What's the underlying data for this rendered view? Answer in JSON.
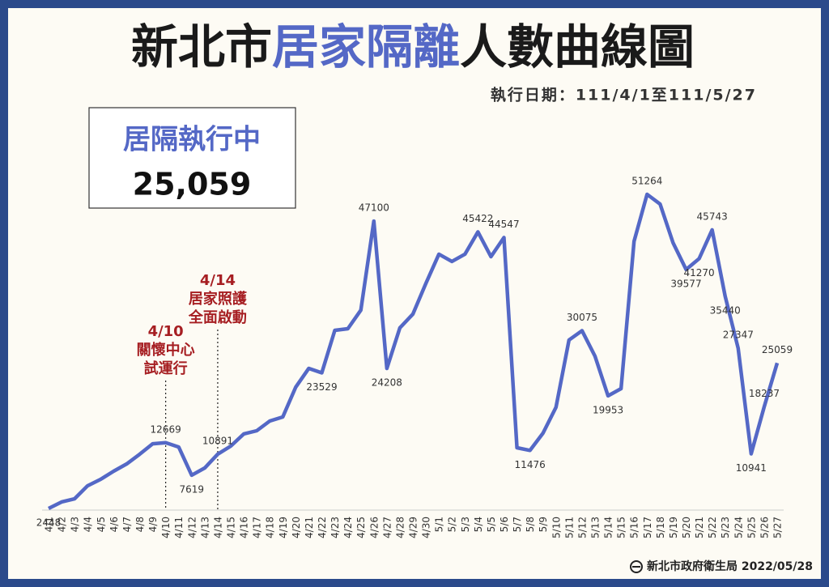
{
  "chart_data": {
    "type": "line",
    "title_parts": [
      {
        "text": "新北市",
        "color": "#1a1a1a"
      },
      {
        "text": "居家隔離",
        "color": "#5468c6"
      },
      {
        "text": "人數曲線圖",
        "color": "#1a1a1a"
      }
    ],
    "subtitle": "執行日期：111/4/1至111/5/27",
    "summary": {
      "label": "居隔執行中",
      "value_text": "25,059"
    },
    "footer": "新北市政府衛生局 2022/05/28",
    "color": "#5468c6",
    "categories": [
      "4/1",
      "4/2",
      "4/3",
      "4/4",
      "4/5",
      "4/6",
      "4/7",
      "4/8",
      "4/9",
      "4/10",
      "4/11",
      "4/12",
      "4/13",
      "4/14",
      "4/15",
      "4/16",
      "4/17",
      "4/18",
      "4/19",
      "4/20",
      "4/21",
      "4/22",
      "4/23",
      "4/24",
      "4/25",
      "4/26",
      "4/27",
      "4/28",
      "4/29",
      "4/30",
      "5/1",
      "5/2",
      "5/3",
      "5/4",
      "5/5",
      "5/6",
      "5/7",
      "5/8",
      "5/9",
      "5/10",
      "5/11",
      "5/12",
      "5/13",
      "5/14",
      "5/15",
      "5/16",
      "5/17",
      "5/18",
      "5/19",
      "5/20",
      "5/21",
      "5/22",
      "5/23",
      "5/24",
      "5/25",
      "5/26",
      "5/27"
    ],
    "values": [
      2448,
      3460,
      3960,
      5980,
      6980,
      8240,
      9370,
      10880,
      12500,
      12669,
      12000,
      7619,
      8740,
      10891,
      12140,
      14030,
      14530,
      16040,
      16670,
      21320,
      24220,
      23529,
      30130,
      30380,
      33270,
      47100,
      24208,
      30510,
      32650,
      37430,
      41960,
      40830,
      41960,
      45422,
      41580,
      44547,
      11890,
      11476,
      14150,
      18180,
      28630,
      30075,
      26100,
      19953,
      21070,
      43970,
      51264,
      49750,
      43710,
      39577,
      41270,
      45743,
      35440,
      27347,
      10941,
      18237,
      25059
    ],
    "value_labels": [
      "2448",
      null,
      null,
      null,
      null,
      null,
      null,
      null,
      null,
      "12669",
      null,
      "7619",
      null,
      "10891",
      null,
      null,
      null,
      null,
      null,
      null,
      null,
      "23529",
      null,
      null,
      null,
      "47100",
      "24208",
      null,
      null,
      null,
      null,
      null,
      null,
      "45422",
      null,
      "44547",
      null,
      "11476",
      null,
      null,
      null,
      "30075",
      null,
      "19953",
      null,
      null,
      "51264",
      null,
      null,
      "39577",
      "41270",
      "45743",
      "35440",
      "27347",
      "10941",
      "18237",
      "25059"
    ],
    "annotations": [
      {
        "lines": [
          "4/10",
          "關懷中心",
          "試運行"
        ],
        "color": "#a61e22"
      },
      {
        "lines": [
          "4/14",
          "居家照護",
          "全面啟動"
        ],
        "color": "#a61e22"
      }
    ]
  }
}
